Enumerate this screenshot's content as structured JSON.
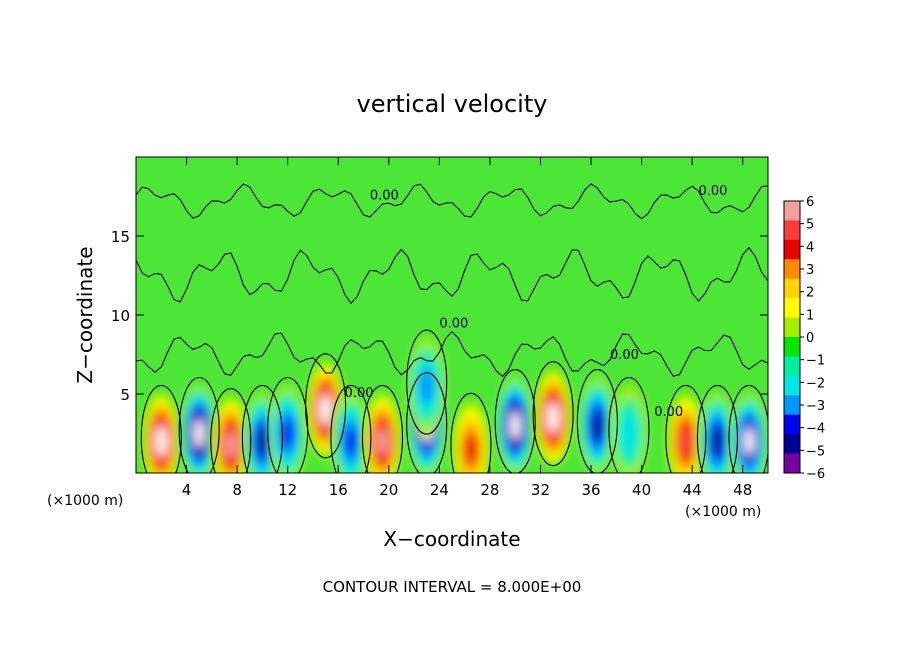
{
  "chart_data": {
    "type": "heatmap",
    "title": "vertical velocity",
    "xlabel": "X−coordinate",
    "ylabel": "Z−coordinate",
    "x_unit": "(×1000 m)",
    "x_unit_right": "(×1000 m)",
    "xlim": [
      0,
      50
    ],
    "ylim": [
      0,
      20
    ],
    "x_ticks": [
      4,
      8,
      12,
      16,
      20,
      24,
      28,
      32,
      36,
      40,
      44,
      48
    ],
    "y_ticks": [
      5,
      10,
      15
    ],
    "colorbar": {
      "levels": [
        6,
        5,
        4,
        3,
        2,
        1,
        0,
        -1,
        -2,
        -3,
        -4,
        -5,
        -6
      ],
      "labels": [
        "6",
        "5",
        "4",
        "3",
        "2",
        "1",
        "0",
        "−1",
        "−2",
        "−3",
        "−4",
        "−5",
        "−6"
      ],
      "colors": [
        "#f4a0a0",
        "#ff3c3c",
        "#e60000",
        "#ff8c00",
        "#ffd400",
        "#ffff00",
        "#a0f000",
        "#00e600",
        "#00f0a0",
        "#00e6e6",
        "#0096ff",
        "#0000f0",
        "#000096",
        "#7800a0"
      ]
    },
    "contour_label": "0.00",
    "contour_interval_text": "CONTOUR INTERVAL =  8.000E+00",
    "features": [
      {
        "x": 2.0,
        "z": 2.0,
        "w": 6.5
      },
      {
        "x": 5.0,
        "z": 2.5,
        "w": -6.5
      },
      {
        "x": 7.5,
        "z": 1.8,
        "w": 5.5
      },
      {
        "x": 10.0,
        "z": 2.0,
        "w": -4.5
      },
      {
        "x": 12.0,
        "z": 2.5,
        "w": -4.0
      },
      {
        "x": 15.0,
        "z": 4.0,
        "w": 6.5
      },
      {
        "x": 17.0,
        "z": 2.0,
        "w": -3.5
      },
      {
        "x": 19.5,
        "z": 2.0,
        "w": 5.5
      },
      {
        "x": 23.0,
        "z": 2.8,
        "w": -6.0
      },
      {
        "x": 23.0,
        "z": 5.5,
        "w": -2.5
      },
      {
        "x": 26.5,
        "z": 1.5,
        "w": 3.5
      },
      {
        "x": 30.0,
        "z": 3.0,
        "w": -6.5
      },
      {
        "x": 33.0,
        "z": 3.5,
        "w": 6.5
      },
      {
        "x": 36.5,
        "z": 3.0,
        "w": -4.5
      },
      {
        "x": 39.0,
        "z": 2.5,
        "w": -2.0
      },
      {
        "x": 43.5,
        "z": 2.0,
        "w": 5.0
      },
      {
        "x": 46.0,
        "z": 2.0,
        "w": -5.0
      },
      {
        "x": 48.5,
        "z": 2.0,
        "w": -6.0
      }
    ]
  }
}
